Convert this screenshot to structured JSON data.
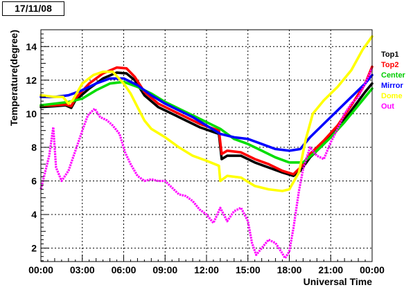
{
  "date_label": "17/11/08",
  "chart_data": {
    "type": "line",
    "xlabel": "Universal Time",
    "ylabel": "Temperature(degree)",
    "xlim": [
      0,
      24
    ],
    "ylim": [
      1.2,
      15.0
    ],
    "grid": true,
    "legend_position": "right",
    "x_ticks": [
      {
        "value": 0,
        "label": "00:00"
      },
      {
        "value": 3,
        "label": "03:00"
      },
      {
        "value": 6,
        "label": "06:00"
      },
      {
        "value": 9,
        "label": "09:00"
      },
      {
        "value": 12,
        "label": "12:00"
      },
      {
        "value": 15,
        "label": "15:00"
      },
      {
        "value": 18,
        "label": "18:00"
      },
      {
        "value": 21,
        "label": "21:00"
      },
      {
        "value": 24,
        "label": "00:00"
      }
    ],
    "y_ticks": [
      {
        "value": 2,
        "label": "2"
      },
      {
        "value": 4,
        "label": "4"
      },
      {
        "value": 6,
        "label": "6"
      },
      {
        "value": 8,
        "label": "8"
      },
      {
        "value": 10,
        "label": "10"
      },
      {
        "value": 12,
        "label": "12"
      },
      {
        "value": 14,
        "label": "14"
      }
    ],
    "series": [
      {
        "name": "Top1",
        "color": "#000000",
        "points": [
          [
            0,
            10.4
          ],
          [
            1,
            10.45
          ],
          [
            1.8,
            10.5
          ],
          [
            2.2,
            10.35
          ],
          [
            2.5,
            10.8
          ],
          [
            3.5,
            11.5
          ],
          [
            4.5,
            12.1
          ],
          [
            5.5,
            12.45
          ],
          [
            6.2,
            12.4
          ],
          [
            6.8,
            12.0
          ],
          [
            7.5,
            11.1
          ],
          [
            8.5,
            10.4
          ],
          [
            10,
            9.8
          ],
          [
            11.5,
            9.2
          ],
          [
            12.9,
            8.8
          ],
          [
            13.1,
            7.3
          ],
          [
            13.5,
            7.5
          ],
          [
            14.5,
            7.5
          ],
          [
            15.5,
            7.1
          ],
          [
            16.5,
            6.8
          ],
          [
            17.5,
            6.5
          ],
          [
            18.3,
            6.3
          ],
          [
            18.8,
            6.6
          ],
          [
            19.5,
            7.4
          ],
          [
            20.5,
            8.2
          ],
          [
            21.5,
            9.1
          ],
          [
            22.5,
            10.2
          ],
          [
            23.5,
            11.3
          ],
          [
            24,
            11.8
          ]
        ]
      },
      {
        "name": "Top2",
        "color": "#ff0000",
        "points": [
          [
            0,
            10.5
          ],
          [
            1,
            10.5
          ],
          [
            1.8,
            10.55
          ],
          [
            2.2,
            10.45
          ],
          [
            2.5,
            10.9
          ],
          [
            3.5,
            11.8
          ],
          [
            4.5,
            12.4
          ],
          [
            5.5,
            12.75
          ],
          [
            6.2,
            12.7
          ],
          [
            6.8,
            12.2
          ],
          [
            7.5,
            11.3
          ],
          [
            8.5,
            10.6
          ],
          [
            10,
            10.0
          ],
          [
            11.5,
            9.4
          ],
          [
            12.9,
            9.0
          ],
          [
            13.1,
            7.6
          ],
          [
            13.5,
            7.8
          ],
          [
            14.5,
            7.7
          ],
          [
            15.5,
            7.3
          ],
          [
            16.5,
            7.0
          ],
          [
            17.5,
            6.6
          ],
          [
            18.3,
            6.4
          ],
          [
            18.8,
            6.8
          ],
          [
            19.5,
            7.6
          ],
          [
            20.5,
            8.4
          ],
          [
            21.5,
            9.3
          ],
          [
            22.5,
            10.5
          ],
          [
            23.5,
            11.8
          ],
          [
            24,
            12.8
          ]
        ]
      },
      {
        "name": "Center",
        "color": "#00dd00",
        "points": [
          [
            0,
            10.5
          ],
          [
            1,
            10.6
          ],
          [
            2,
            10.7
          ],
          [
            3,
            10.9
          ],
          [
            4,
            11.4
          ],
          [
            5,
            11.8
          ],
          [
            6,
            11.9
          ],
          [
            7,
            11.6
          ],
          [
            8,
            11.2
          ],
          [
            9,
            10.7
          ],
          [
            10,
            10.3
          ],
          [
            11,
            9.9
          ],
          [
            12,
            9.5
          ],
          [
            13,
            9.1
          ],
          [
            14,
            8.5
          ],
          [
            15,
            8.2
          ],
          [
            16,
            7.8
          ],
          [
            17,
            7.4
          ],
          [
            18,
            7.1
          ],
          [
            19,
            7.1
          ],
          [
            20,
            7.8
          ],
          [
            21,
            8.6
          ],
          [
            22,
            9.5
          ],
          [
            23,
            10.5
          ],
          [
            24,
            11.5
          ]
        ]
      },
      {
        "name": "Mirror",
        "color": "#0000ff",
        "points": [
          [
            0,
            11.0
          ],
          [
            1,
            11.0
          ],
          [
            2,
            11.1
          ],
          [
            3,
            11.4
          ],
          [
            4,
            11.8
          ],
          [
            5,
            12.1
          ],
          [
            6,
            12.1
          ],
          [
            7,
            11.7
          ],
          [
            8,
            11.1
          ],
          [
            9,
            10.6
          ],
          [
            10,
            10.2
          ],
          [
            11,
            9.8
          ],
          [
            12,
            9.3
          ],
          [
            13,
            8.8
          ],
          [
            14,
            8.6
          ],
          [
            15,
            8.5
          ],
          [
            16,
            8.2
          ],
          [
            17,
            7.9
          ],
          [
            18,
            7.8
          ],
          [
            18.8,
            7.9
          ],
          [
            19.5,
            8.6
          ],
          [
            20.5,
            9.4
          ],
          [
            21.5,
            10.2
          ],
          [
            22.5,
            11.0
          ],
          [
            23.5,
            11.8
          ],
          [
            24,
            12.3
          ]
        ]
      },
      {
        "name": "Dome",
        "color": "#ffff00",
        "points": [
          [
            0,
            11.1
          ],
          [
            1,
            11.0
          ],
          [
            1.6,
            11.0
          ],
          [
            2,
            10.6
          ],
          [
            2.3,
            10.8
          ],
          [
            3,
            11.8
          ],
          [
            3.8,
            12.3
          ],
          [
            4.5,
            12.5
          ],
          [
            5.2,
            12.5
          ],
          [
            6,
            11.8
          ],
          [
            6.5,
            11.2
          ],
          [
            7,
            10.4
          ],
          [
            7.5,
            9.6
          ],
          [
            8,
            9.1
          ],
          [
            9,
            8.6
          ],
          [
            10,
            8.0
          ],
          [
            11,
            7.5
          ],
          [
            12,
            7.2
          ],
          [
            12.9,
            6.9
          ],
          [
            13,
            6.0
          ],
          [
            13.5,
            6.3
          ],
          [
            14.5,
            6.2
          ],
          [
            15.5,
            5.7
          ],
          [
            16.5,
            5.5
          ],
          [
            17.5,
            5.4
          ],
          [
            18,
            5.5
          ],
          [
            18.7,
            6.5
          ],
          [
            19.2,
            8.5
          ],
          [
            19.7,
            10.0
          ],
          [
            20.5,
            10.8
          ],
          [
            21.5,
            11.6
          ],
          [
            22.5,
            12.6
          ],
          [
            23.3,
            13.8
          ],
          [
            24,
            14.6
          ]
        ]
      },
      {
        "name": "Out",
        "color": "#ff00ff",
        "points": [
          [
            0,
            5.5
          ],
          [
            0.3,
            6.5
          ],
          [
            0.6,
            7.5
          ],
          [
            0.9,
            9.2
          ],
          [
            1.1,
            6.8
          ],
          [
            1.5,
            6.0
          ],
          [
            2,
            6.6
          ],
          [
            2.5,
            7.8
          ],
          [
            3,
            9.0
          ],
          [
            3.4,
            9.9
          ],
          [
            3.9,
            10.3
          ],
          [
            4.3,
            9.8
          ],
          [
            4.8,
            9.6
          ],
          [
            5.2,
            9.3
          ],
          [
            5.7,
            8.8
          ],
          [
            6.1,
            7.7
          ],
          [
            6.5,
            7.0
          ],
          [
            7,
            6.3
          ],
          [
            7.5,
            6.0
          ],
          [
            8,
            6.1
          ],
          [
            8.5,
            6.0
          ],
          [
            9,
            6.0
          ],
          [
            9.5,
            5.6
          ],
          [
            10,
            5.2
          ],
          [
            10.5,
            5.1
          ],
          [
            11,
            4.8
          ],
          [
            11.5,
            4.3
          ],
          [
            12,
            4.0
          ],
          [
            12.5,
            3.5
          ],
          [
            13,
            4.4
          ],
          [
            13.5,
            3.6
          ],
          [
            14,
            4.2
          ],
          [
            14.5,
            4.4
          ],
          [
            15,
            3.6
          ],
          [
            15.3,
            2.3
          ],
          [
            15.6,
            1.6
          ],
          [
            16,
            2.0
          ],
          [
            16.5,
            2.5
          ],
          [
            17,
            2.3
          ],
          [
            17.4,
            1.8
          ],
          [
            17.7,
            1.4
          ],
          [
            18,
            1.8
          ],
          [
            18.3,
            3.2
          ],
          [
            18.7,
            5.4
          ],
          [
            19,
            6.7
          ],
          [
            19.5,
            8.0
          ],
          [
            20,
            7.5
          ],
          [
            20.5,
            7.3
          ],
          [
            21,
            8.3
          ],
          [
            21.5,
            9.1
          ],
          [
            22,
            10.0
          ],
          [
            22.5,
            10.6
          ],
          [
            23,
            11.0
          ],
          [
            23.5,
            11.8
          ],
          [
            24,
            12.7
          ]
        ]
      }
    ]
  }
}
